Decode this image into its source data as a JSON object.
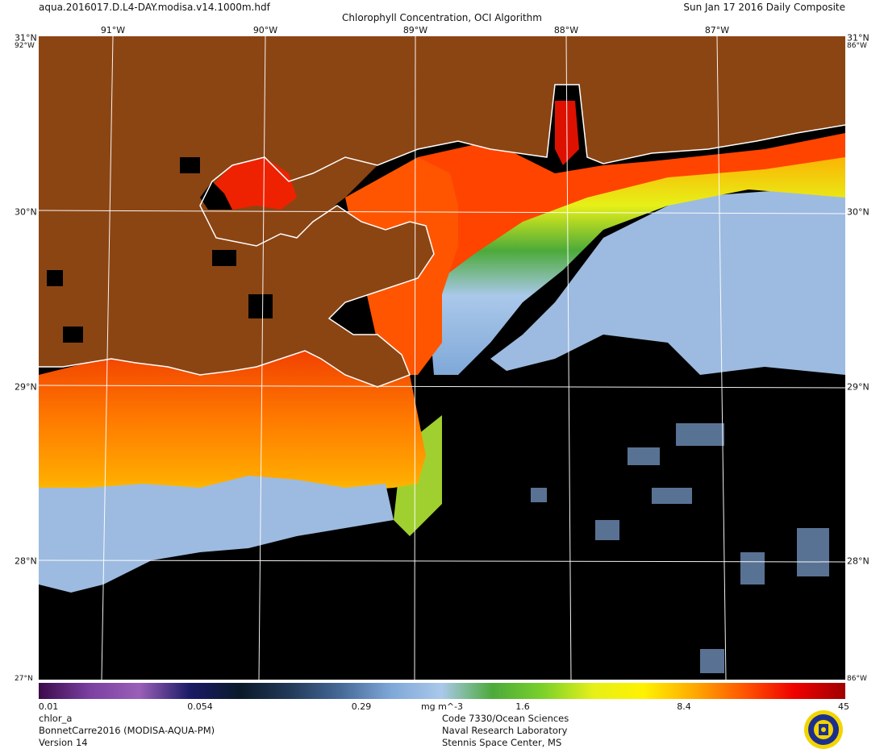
{
  "header": {
    "file_name": "aqua.2016017.D.L4-DAY.modisa.v14.1000m.hdf",
    "title": "Chlorophyll Concentration, OCI Algorithm",
    "composite": "Sun Jan 17 2016 Daily Composite"
  },
  "axes": {
    "lon_labels": [
      "91°W",
      "90°W",
      "89°W",
      "88°W",
      "87°W"
    ],
    "lat_labels": [
      "31°N",
      "30°N",
      "29°N",
      "28°N"
    ],
    "corner_labels": [
      "92°W",
      "86°W",
      "27°N",
      "31°N"
    ]
  },
  "map": {
    "land_color": "#8B4513",
    "nodata_color": "#000000",
    "coast_color": "#ffffff",
    "grid_color": "#ffffff"
  },
  "colorbar": {
    "tick_labels": [
      "0.01",
      "0.054",
      "0.29",
      "mg m^-3",
      "1.6",
      "8.4",
      "45"
    ],
    "scale": "log",
    "colors": [
      "#3b0a4a",
      "#7a3fa0",
      "#9a5fb8",
      "#1a1a66",
      "#0a1a2a",
      "#233a5a",
      "#466a98",
      "#7fa8d8",
      "#aac8ea",
      "#4caa3a",
      "#7ad12a",
      "#e6f018",
      "#fff200",
      "#ffaa00",
      "#ff5500",
      "#ee0000",
      "#a00000"
    ]
  },
  "footer": {
    "product": "chlor_a",
    "region": "BonnetCarre2016 (MODISA-AQUA-PM)",
    "version": "Version 14",
    "org1": "Code 7330/Ocean Sciences",
    "org2": "Naval Research Laboratory",
    "org3": "Stennis Space Center, MS"
  },
  "icons": {
    "seal": "nrl-seal-icon"
  }
}
